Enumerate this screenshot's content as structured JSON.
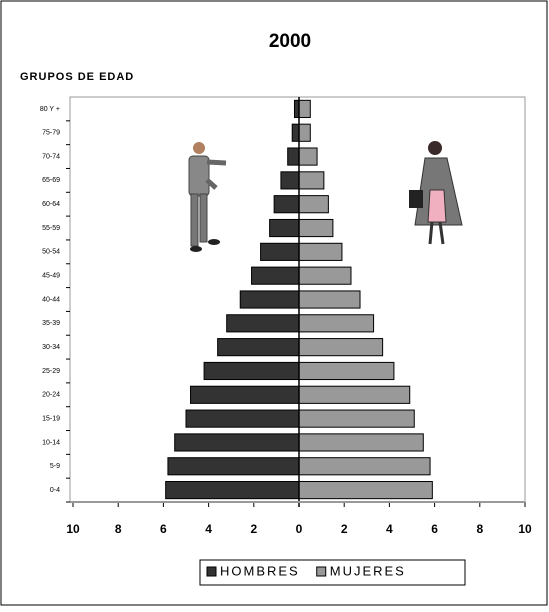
{
  "chart_data": {
    "type": "bar",
    "orientation": "horizontal",
    "title": "2000",
    "y_label": "GRUPOS DE EDAD",
    "categories": [
      "0-4",
      "5-9",
      "10-14",
      "15-19",
      "20-24",
      "25-29",
      "30-34",
      "35-39",
      "40-44",
      "45-49",
      "50-54",
      "55-59",
      "60-64",
      "65-69",
      "70-74",
      "75-79",
      "80 Y +"
    ],
    "series": [
      {
        "name": "HOMBRES",
        "color": "#333333",
        "values": [
          -5.9,
          -5.8,
          -5.5,
          -5.0,
          -4.8,
          -4.2,
          -3.6,
          -3.2,
          -2.6,
          -2.1,
          -1.7,
          -1.3,
          -1.1,
          -0.8,
          -0.5,
          -0.3,
          -0.2
        ]
      },
      {
        "name": "MUJERES",
        "color": "#999999",
        "values": [
          5.9,
          5.8,
          5.5,
          5.1,
          4.9,
          4.2,
          3.7,
          3.3,
          2.7,
          2.3,
          1.9,
          1.5,
          1.3,
          1.1,
          0.8,
          0.5,
          0.5
        ]
      }
    ],
    "xlim": [
      -10,
      10
    ],
    "xticks": [
      {
        "value": -10,
        "label": "10"
      },
      {
        "value": -8,
        "label": "8"
      },
      {
        "value": -6,
        "label": "6"
      },
      {
        "value": -4,
        "label": "4"
      },
      {
        "value": -2,
        "label": "2"
      },
      0,
      2,
      4,
      6,
      8,
      10
    ],
    "legend": "bottom"
  }
}
